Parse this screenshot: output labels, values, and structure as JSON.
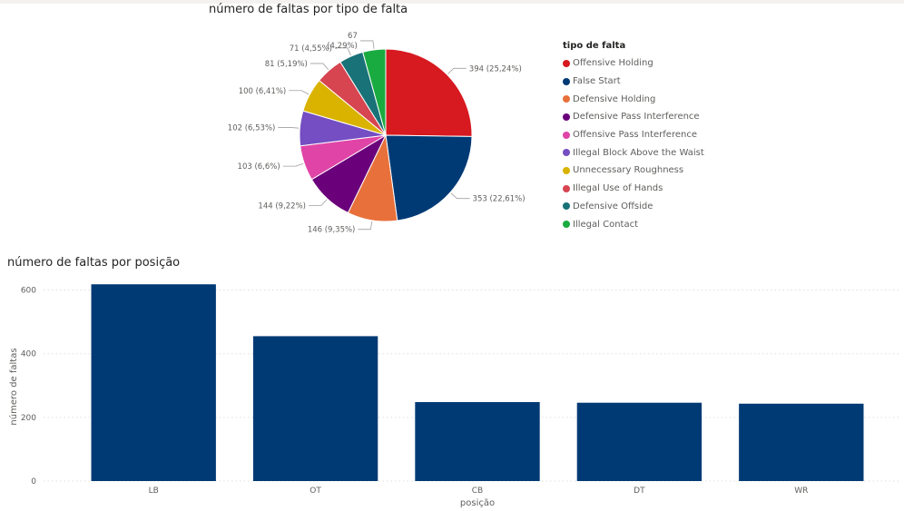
{
  "pie_title": "número de faltas por tipo de falta",
  "bar_title": "número de faltas por posição",
  "legend_title": "tipo de falta",
  "chart_data": [
    {
      "type": "pie",
      "title": "número de faltas por tipo de falta",
      "legend_title": "tipo de falta",
      "legend_position": "right",
      "slices": [
        {
          "name": "Offensive Holding",
          "value": 394,
          "label": "394 (25,24%)",
          "color": "#d71920"
        },
        {
          "name": "False Start",
          "value": 353,
          "label": "353 (22,61%)",
          "color": "#003a75"
        },
        {
          "name": "Defensive Holding",
          "value": 146,
          "label": "146 (9,35%)",
          "color": "#e8703b"
        },
        {
          "name": "Defensive Pass Interference",
          "value": 144,
          "label": "144 (9,22%)",
          "color": "#6b007b"
        },
        {
          "name": "Offensive Pass Interference",
          "value": 103,
          "label": "103 (6,6%)",
          "color": "#e044a7"
        },
        {
          "name": "Illegal Block Above the Waist",
          "value": 102,
          "label": "102 (6,53%)",
          "color": "#744ec2"
        },
        {
          "name": "Unnecessary Roughness",
          "value": 100,
          "label": "100 (6,41%)",
          "color": "#d9b300"
        },
        {
          "name": "Illegal Use of Hands",
          "value": 81,
          "label": "81 (5,19%)",
          "color": "#d64550"
        },
        {
          "name": "Defensive Offside",
          "value": 71,
          "label": "71 (4,55%)",
          "color": "#197278"
        },
        {
          "name": "Illegal Contact",
          "value": 67,
          "label": "67 (4,29%)",
          "label_lines": [
            "67",
            "(4,29%)"
          ],
          "color": "#1aab40"
        }
      ]
    },
    {
      "type": "bar",
      "title": "número de faltas por posição",
      "xlabel": "posição",
      "ylabel": "número de faltas",
      "categories": [
        "LB",
        "OT",
        "CB",
        "DT",
        "WR"
      ],
      "values": [
        618,
        455,
        248,
        246,
        243
      ],
      "ylim": [
        0,
        650
      ],
      "yticks": [
        0,
        200,
        400,
        600
      ],
      "ytick_labels": [
        "0",
        "200",
        "400",
        "600"
      ],
      "color": "#003a75",
      "grid": true
    }
  ]
}
